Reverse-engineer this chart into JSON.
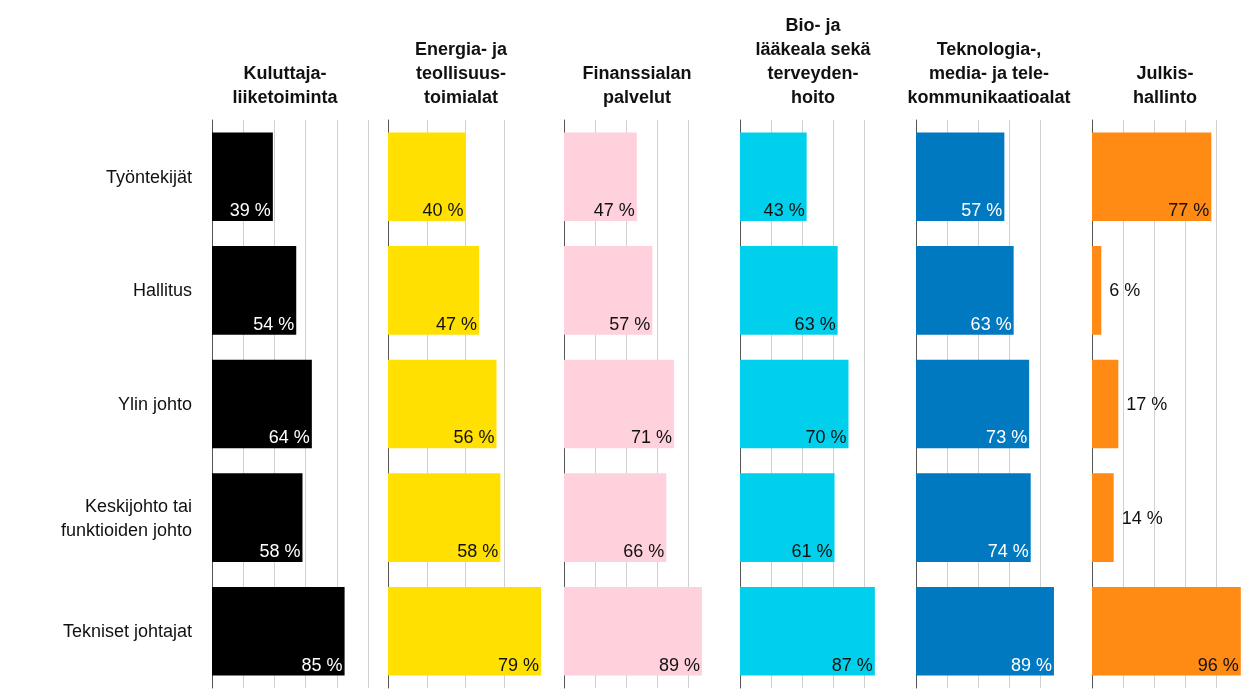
{
  "chart_data": [
    {
      "type": "bar",
      "orientation": "horizontal",
      "title": "Kuluttaja-\nliiketoiminta",
      "categories": [
        "Työntekijät",
        "Hallitus",
        "Ylin johto",
        "Keskijohto tai\nfunktioiden johto",
        "Tekniset johtajat"
      ],
      "values": [
        39,
        54,
        64,
        58,
        85
      ],
      "value_labels": [
        "39 %",
        "54 %",
        "64 %",
        "58 %",
        "85 %"
      ],
      "color": "#000000",
      "grid": "x",
      "tick_labels": "y"
    },
    {
      "type": "bar",
      "orientation": "horizontal",
      "title": "Energia- ja\nteollisuus-\ntoimialat",
      "categories": [
        null,
        null,
        null,
        null,
        null
      ],
      "values": [
        40,
        47,
        56,
        58,
        79
      ],
      "value_labels": [
        "40 %",
        "47 %",
        "56 %",
        "58 %",
        "79 %"
      ],
      "color": "#ffe000",
      "grid": "x",
      "tick_labels": false
    },
    {
      "type": "bar",
      "orientation": "horizontal",
      "title": "Finanssialan\npalvelut",
      "categories": [
        null,
        null,
        null,
        null,
        null
      ],
      "values": [
        47,
        57,
        71,
        66,
        89
      ],
      "value_labels": [
        "47 %",
        "57 %",
        "71 %",
        "66 %",
        "89 %"
      ],
      "color": "#ffd1dc",
      "grid": "x",
      "tick_labels": false
    },
    {
      "type": "bar",
      "orientation": "horizontal",
      "title": "Bio- ja\nlääkeala sekä\nterveyden-\nhoito",
      "categories": [
        null,
        null,
        null,
        null,
        null
      ],
      "values": [
        43,
        63,
        70,
        61,
        87
      ],
      "value_labels": [
        "43 %",
        "63 %",
        "70 %",
        "61 %",
        "87 %"
      ],
      "color": "#00d0eb",
      "grid": "x",
      "tick_labels": false
    },
    {
      "type": "bar",
      "orientation": "horizontal",
      "title": "Teknologia-,\nmedia- ja tele-\nkommunikaatioalat",
      "categories": [
        null,
        null,
        null,
        null,
        null
      ],
      "values": [
        57,
        63,
        73,
        74,
        89
      ],
      "value_labels": [
        "57 %",
        "63 %",
        "73 %",
        "74 %",
        "89 %"
      ],
      "color": "#0079c1",
      "grid": "x",
      "tick_labels": false
    },
    {
      "type": "bar",
      "orientation": "horizontal",
      "title": "Julkis-\nhallinto",
      "categories": [
        null,
        null,
        null,
        null,
        null
      ],
      "values": [
        77,
        6,
        17,
        14,
        96
      ],
      "value_labels": [
        "77 %",
        "6 %",
        "17 %",
        "14 %",
        "96 %"
      ],
      "color": "#ff8a14",
      "grid": "x",
      "tick_labels": false
    }
  ]
}
